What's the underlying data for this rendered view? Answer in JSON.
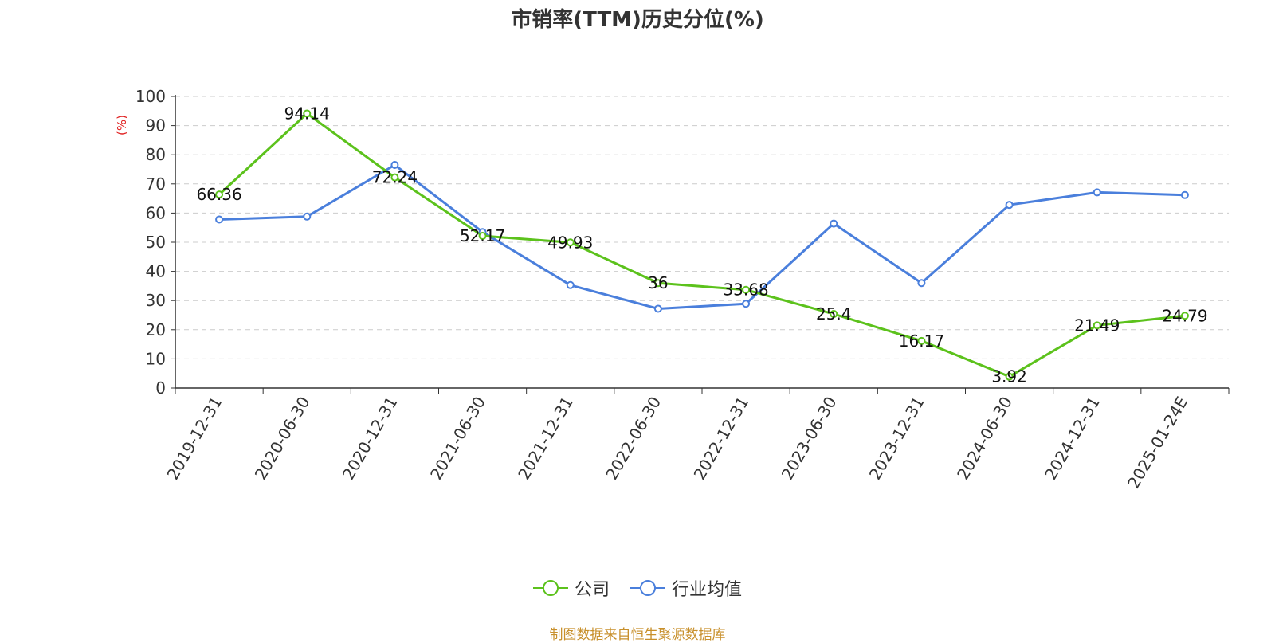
{
  "chart_data": {
    "type": "line",
    "title": "市销率(TTM)历史分位(%)",
    "ylabel": "(%)",
    "xlabel": "",
    "ylim": [
      0,
      100
    ],
    "yticks": [
      0,
      10,
      20,
      30,
      40,
      50,
      60,
      70,
      80,
      90,
      100
    ],
    "grid": true,
    "legend_position": "bottom",
    "categories": [
      "2019-12-31",
      "2020-06-30",
      "2020-12-31",
      "2021-06-30",
      "2021-12-31",
      "2022-06-30",
      "2022-12-31",
      "2023-06-30",
      "2023-12-31",
      "2024-06-30",
      "2024-12-31",
      "2025-01-24E"
    ],
    "series": [
      {
        "name": "公司",
        "color": "#5cc21c",
        "values": [
          66.36,
          94.14,
          72.24,
          52.17,
          49.93,
          36,
          33.68,
          25.4,
          16.17,
          3.92,
          21.49,
          24.79
        ],
        "labels": [
          "66.36",
          "94.14",
          "72.24",
          "52.17",
          "49.93",
          "36",
          "33.68",
          "25.4",
          "16.17",
          "3.92",
          "21.49",
          "24.79"
        ]
      },
      {
        "name": "行业均值",
        "color": "#4a7fdc",
        "values": [
          57.8,
          58.8,
          76.5,
          53.5,
          35.3,
          27.2,
          28.9,
          56.4,
          36.0,
          62.8,
          67.1,
          66.2
        ]
      }
    ]
  },
  "footer": {
    "source": "制图数据来自恒生聚源数据库"
  },
  "colors": {
    "ylabel": "#e02020",
    "source": "#c8902c"
  }
}
